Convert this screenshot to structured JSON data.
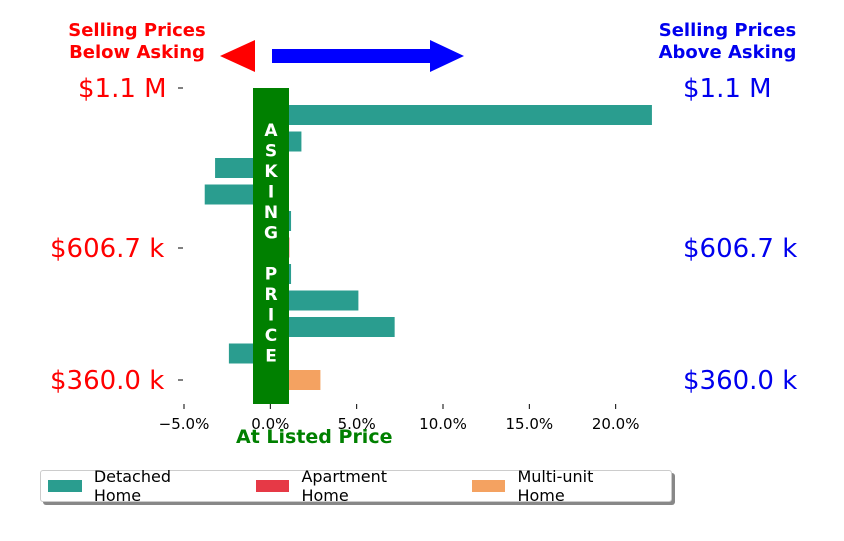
{
  "header": {
    "left": "Selling Prices\nBelow Asking",
    "right": "Selling Prices\nAbove Asking"
  },
  "price_labels": {
    "top": "$1.1 M",
    "mid": "$606.7 k",
    "bottom": "$360.0 k"
  },
  "band": {
    "letters": [
      "A",
      "S",
      "K",
      "I",
      "N",
      "G",
      "",
      "P",
      "R",
      "I",
      "C",
      "E"
    ],
    "color": "#008000"
  },
  "arrows": {
    "left_color": "#ff0000",
    "right_color": "#0000ff"
  },
  "listed_label": "At Listed Price",
  "chart_data": {
    "type": "bar",
    "orientation": "horizontal",
    "xlim": [
      -5.0,
      25.0
    ],
    "xticks": [
      -5,
      0,
      5,
      10,
      15,
      20
    ],
    "xtick_labels": [
      "−5.0%",
      "0.0%",
      "5.0%",
      "10.0%",
      "15.0%",
      "20.0%"
    ],
    "series": [
      {
        "name": "Detached Home",
        "color": "#2a9d8f"
      },
      {
        "name": "Apartment Home",
        "color": "#e63946"
      },
      {
        "name": "Multi-unit Home",
        "color": "#f4a261"
      }
    ],
    "bars": [
      {
        "series": 0,
        "value": 22.1
      },
      {
        "series": 0,
        "value": 1.8
      },
      {
        "series": 0,
        "value": -3.2
      },
      {
        "series": 0,
        "value": -3.8
      },
      {
        "series": 0,
        "value": 1.2
      },
      {
        "series": 1,
        "value": 1.1
      },
      {
        "series": 0,
        "value": 1.2
      },
      {
        "series": 0,
        "value": 5.1
      },
      {
        "series": 0,
        "value": 7.2
      },
      {
        "series": 0,
        "value": -2.4
      },
      {
        "series": 2,
        "value": 2.9
      }
    ]
  }
}
